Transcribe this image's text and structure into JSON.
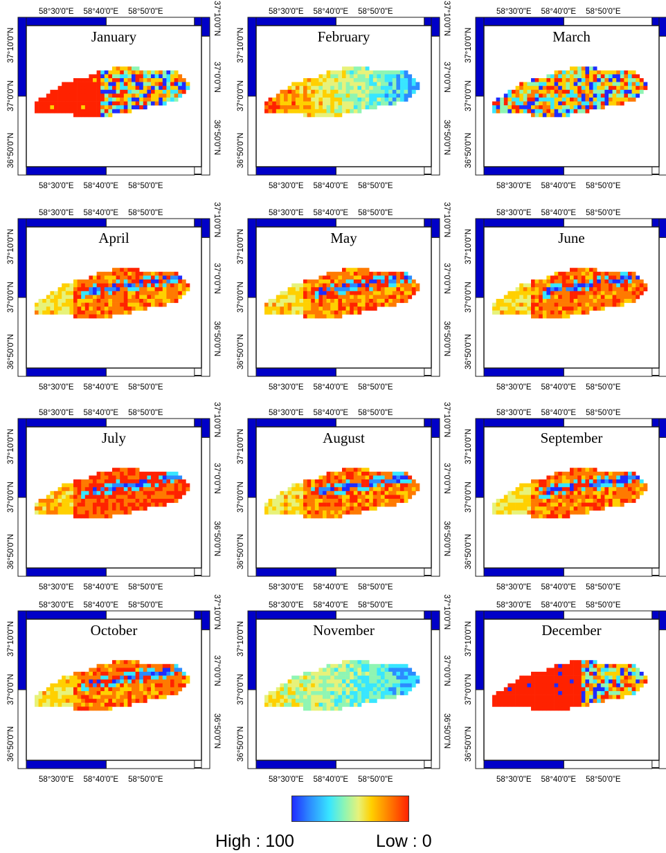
{
  "lon_ticks": [
    "58°30'0\"E",
    "58°40'0\"E",
    "58°50'0\"E"
  ],
  "lat_ticks": [
    "36°50'0\"N",
    "37°0'0\"N",
    "37°10'0\"N"
  ],
  "months": [
    {
      "name": "January",
      "dominant": "red",
      "pattern": "mixed"
    },
    {
      "name": "February",
      "dominant": "orange-west_blue-east",
      "pattern": "gradient"
    },
    {
      "name": "March",
      "dominant": "red",
      "pattern": "mixed"
    },
    {
      "name": "April",
      "dominant": "orange",
      "pattern": "bands"
    },
    {
      "name": "May",
      "dominant": "orange",
      "pattern": "bands"
    },
    {
      "name": "June",
      "dominant": "orange",
      "pattern": "bands"
    },
    {
      "name": "July",
      "dominant": "red",
      "pattern": "bands"
    },
    {
      "name": "August",
      "dominant": "orange",
      "pattern": "bands"
    },
    {
      "name": "September",
      "dominant": "orange",
      "pattern": "bands"
    },
    {
      "name": "October",
      "dominant": "orange",
      "pattern": "bands"
    },
    {
      "name": "November",
      "dominant": "cyan",
      "pattern": "gradient"
    },
    {
      "name": "December",
      "dominant": "red",
      "pattern": "mixed"
    }
  ],
  "legend": {
    "high_label": "High : 100",
    "low_label": "Low : 0",
    "colors": [
      "#1f2cff",
      "#2c8bff",
      "#38e6ff",
      "#8ff5b3",
      "#e7f27a",
      "#ffd000",
      "#ff7a00",
      "#ff2200"
    ]
  }
}
